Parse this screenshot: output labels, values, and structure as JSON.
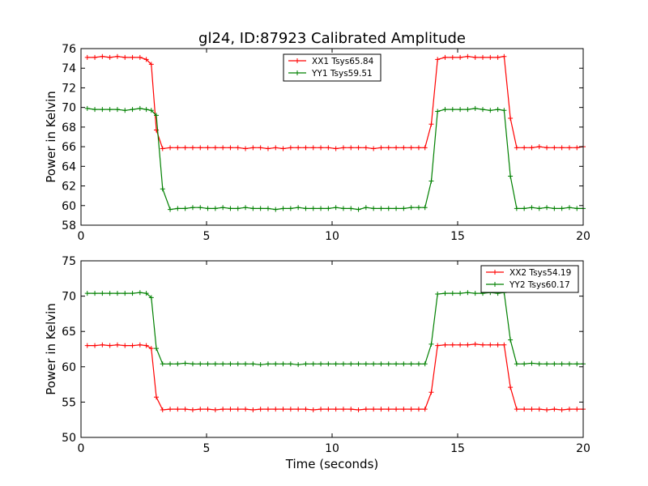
{
  "title": "gl24, ID:87923 Calibrated Amplitude",
  "xlabel": "Time (seconds)",
  "chart_data": [
    {
      "type": "line",
      "title": "gl24, ID:87923 Calibrated Amplitude",
      "xlabel": "",
      "ylabel": "Power in Kelvin",
      "xlim": [
        0,
        20
      ],
      "ylim": [
        58,
        76
      ],
      "xticks": [
        0,
        5,
        10,
        15,
        20
      ],
      "yticks": [
        58,
        60,
        62,
        64,
        66,
        68,
        70,
        72,
        74,
        76
      ],
      "grid": false,
      "legend_position": "top-center",
      "x": [
        0.25,
        0.55,
        0.85,
        1.15,
        1.45,
        1.75,
        2.05,
        2.35,
        2.6,
        2.8,
        3.0,
        3.25,
        3.55,
        3.85,
        4.15,
        4.45,
        4.75,
        5.05,
        5.35,
        5.65,
        5.95,
        6.25,
        6.55,
        6.85,
        7.15,
        7.45,
        7.75,
        8.05,
        8.35,
        8.65,
        8.95,
        9.25,
        9.55,
        9.85,
        10.15,
        10.45,
        10.75,
        11.05,
        11.35,
        11.65,
        11.95,
        12.25,
        12.55,
        12.85,
        13.15,
        13.45,
        13.7,
        13.95,
        14.2,
        14.5,
        14.8,
        15.1,
        15.4,
        15.7,
        16.0,
        16.3,
        16.6,
        16.85,
        17.1,
        17.35,
        17.65,
        17.95,
        18.25,
        18.55,
        18.85,
        19.15,
        19.45,
        19.75,
        20.0
      ],
      "series": [
        {
          "name": "XX1 Tsys65.84",
          "color": "#ff0000",
          "values": [
            75.1,
            75.1,
            75.2,
            75.1,
            75.2,
            75.1,
            75.1,
            75.1,
            74.9,
            74.4,
            67.7,
            65.8,
            65.9,
            65.9,
            65.9,
            65.9,
            65.9,
            65.9,
            65.9,
            65.9,
            65.9,
            65.9,
            65.8,
            65.9,
            65.9,
            65.8,
            65.9,
            65.8,
            65.9,
            65.9,
            65.9,
            65.9,
            65.9,
            65.9,
            65.8,
            65.9,
            65.9,
            65.9,
            65.9,
            65.8,
            65.9,
            65.9,
            65.9,
            65.9,
            65.9,
            65.9,
            65.9,
            68.3,
            74.9,
            75.1,
            75.1,
            75.1,
            75.2,
            75.1,
            75.1,
            75.1,
            75.1,
            75.2,
            68.9,
            65.9,
            65.9,
            65.9,
            66.0,
            65.9,
            65.9,
            65.9,
            65.9,
            65.9,
            66.0
          ]
        },
        {
          "name": "YY1 Tsys59.51",
          "color": "#008000",
          "values": [
            69.9,
            69.8,
            69.8,
            69.8,
            69.8,
            69.7,
            69.8,
            69.9,
            69.8,
            69.7,
            69.2,
            61.7,
            59.6,
            59.7,
            59.7,
            59.8,
            59.8,
            59.7,
            59.7,
            59.8,
            59.7,
            59.7,
            59.8,
            59.7,
            59.7,
            59.7,
            59.6,
            59.7,
            59.7,
            59.8,
            59.7,
            59.7,
            59.7,
            59.7,
            59.8,
            59.7,
            59.7,
            59.6,
            59.8,
            59.7,
            59.7,
            59.7,
            59.7,
            59.7,
            59.8,
            59.8,
            59.8,
            62.5,
            69.6,
            69.8,
            69.8,
            69.8,
            69.8,
            69.9,
            69.8,
            69.7,
            69.8,
            69.7,
            63.0,
            59.7,
            59.7,
            59.8,
            59.7,
            59.8,
            59.7,
            59.7,
            59.8,
            59.7,
            59.7
          ]
        }
      ]
    },
    {
      "type": "line",
      "title": "",
      "xlabel": "Time (seconds)",
      "ylabel": "Power in Kelvin",
      "xlim": [
        0,
        20
      ],
      "ylim": [
        50,
        75
      ],
      "xticks": [
        0,
        5,
        10,
        15,
        20
      ],
      "yticks": [
        50,
        55,
        60,
        65,
        70,
        75
      ],
      "grid": false,
      "legend_position": "top-right",
      "x": [
        0.25,
        0.55,
        0.85,
        1.15,
        1.45,
        1.75,
        2.05,
        2.35,
        2.6,
        2.8,
        3.0,
        3.25,
        3.55,
        3.85,
        4.15,
        4.45,
        4.75,
        5.05,
        5.35,
        5.65,
        5.95,
        6.25,
        6.55,
        6.85,
        7.15,
        7.45,
        7.75,
        8.05,
        8.35,
        8.65,
        8.95,
        9.25,
        9.55,
        9.85,
        10.15,
        10.45,
        10.75,
        11.05,
        11.35,
        11.65,
        11.95,
        12.25,
        12.55,
        12.85,
        13.15,
        13.45,
        13.7,
        13.95,
        14.2,
        14.5,
        14.8,
        15.1,
        15.4,
        15.7,
        16.0,
        16.3,
        16.6,
        16.85,
        17.1,
        17.35,
        17.65,
        17.95,
        18.25,
        18.55,
        18.85,
        19.15,
        19.45,
        19.75,
        20.0
      ],
      "series": [
        {
          "name": "XX2 Tsys54.19",
          "color": "#ff0000",
          "values": [
            63.0,
            63.0,
            63.1,
            63.0,
            63.1,
            63.0,
            63.0,
            63.1,
            63.0,
            62.6,
            55.7,
            53.9,
            54.0,
            54.0,
            54.0,
            53.9,
            54.0,
            54.0,
            53.9,
            54.0,
            54.0,
            54.0,
            54.0,
            53.9,
            54.0,
            54.0,
            54.0,
            54.0,
            54.0,
            54.0,
            54.0,
            53.9,
            54.0,
            54.0,
            54.0,
            54.0,
            54.0,
            53.9,
            54.0,
            54.0,
            54.0,
            54.0,
            54.0,
            54.0,
            54.0,
            54.0,
            54.0,
            56.4,
            63.0,
            63.1,
            63.1,
            63.1,
            63.1,
            63.2,
            63.1,
            63.1,
            63.1,
            63.1,
            57.1,
            54.0,
            54.0,
            54.0,
            54.0,
            53.9,
            54.0,
            53.9,
            54.0,
            54.0,
            54.0
          ]
        },
        {
          "name": "YY2 Tsys60.17",
          "color": "#008000",
          "values": [
            70.4,
            70.4,
            70.4,
            70.4,
            70.4,
            70.4,
            70.4,
            70.5,
            70.4,
            69.8,
            62.6,
            60.4,
            60.4,
            60.4,
            60.5,
            60.4,
            60.4,
            60.4,
            60.4,
            60.4,
            60.4,
            60.4,
            60.4,
            60.4,
            60.3,
            60.4,
            60.4,
            60.4,
            60.4,
            60.3,
            60.4,
            60.4,
            60.4,
            60.4,
            60.4,
            60.4,
            60.4,
            60.4,
            60.4,
            60.4,
            60.4,
            60.4,
            60.4,
            60.4,
            60.4,
            60.4,
            60.4,
            63.2,
            70.3,
            70.4,
            70.4,
            70.4,
            70.5,
            70.4,
            70.4,
            70.5,
            70.4,
            70.5,
            63.8,
            60.4,
            60.4,
            60.5,
            60.4,
            60.4,
            60.4,
            60.4,
            60.4,
            60.4,
            60.4
          ]
        }
      ]
    }
  ]
}
